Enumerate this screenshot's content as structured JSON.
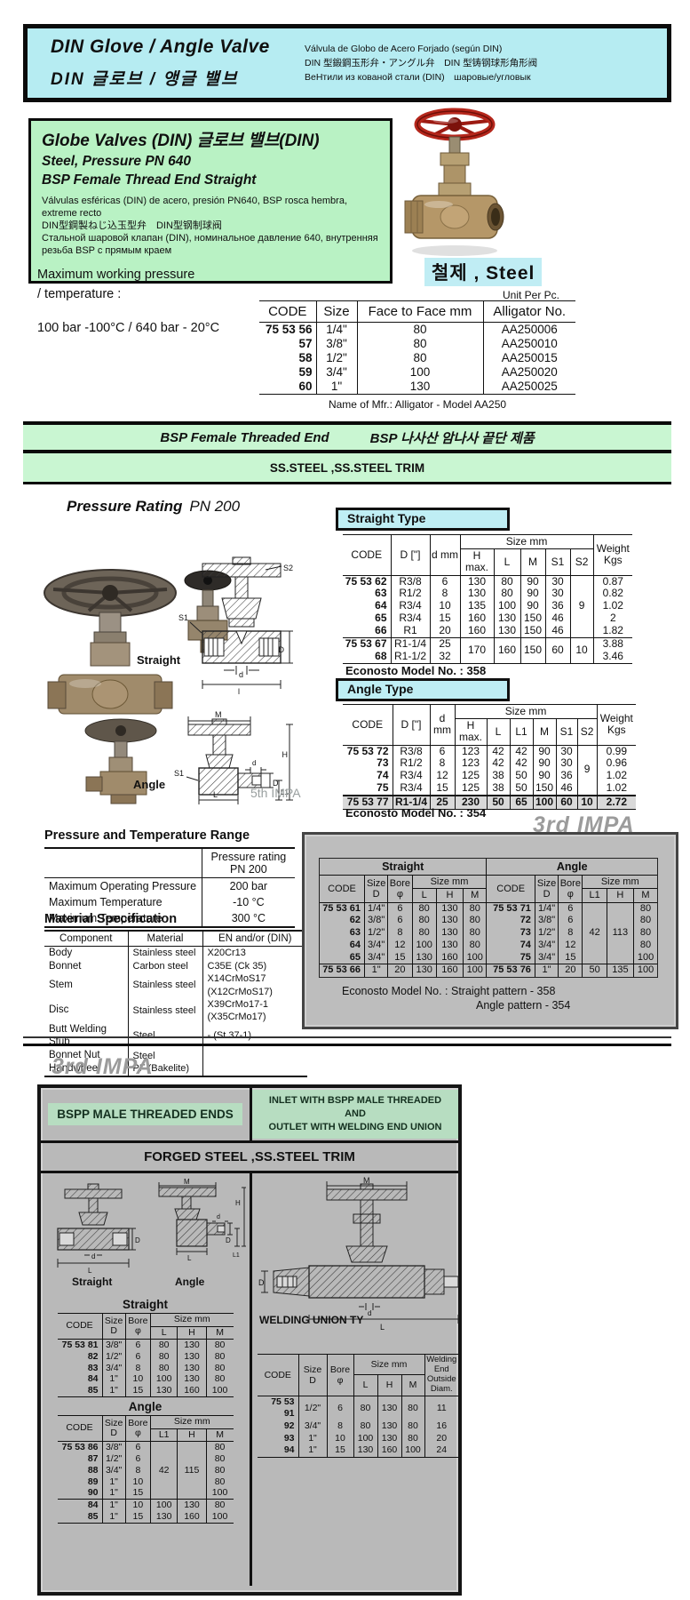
{
  "colors": {
    "cyan": "#b6ecf2",
    "green_box": "#b9f2c4",
    "band_green": "#c9f6d2",
    "gray_box": "#bdbdbd",
    "handwheel_red": "#b5271c"
  },
  "header": {
    "title_en": "DIN Glove / Angle Valve",
    "title_ko": "DIN 글로브 / 앵글 밸브",
    "sub_es": "Válvula de Globo de Acero Forjado (según DIN)",
    "sub_ja": "DIN 型鍛鋼玉形弁・アングル弁　DIN 型铸钢球形角形阀",
    "sub_ru": "ВеНтили из кованой стали (DIN)　шаровые/угловык"
  },
  "product": {
    "title": "Globe Valves (DIN)  글로브 밸브(DIN)",
    "line2": "Steel, Pressure PN 640",
    "line3": "BSP Female Thread End  Straight",
    "desc_es": "Válvulas esféricas (DIN) de acero, presión PN640, BSP rosca hembra, extreme recto",
    "desc_ja": "DIN型鋼製ねじ込玉型弁　DIN型钢制球阀",
    "desc_ru": "Стальной шаровой клапан (DIN), номинальное давление 640, внутренняя резьба BSP с прямым краем"
  },
  "photo_caption": "철제 , Steel",
  "working": {
    "l1": "Maximum working pressure",
    "l2": "/ temperature :",
    "l3": "100 bar -100°C / 640 bar - 20°C"
  },
  "unit": "Unit Per Pc.",
  "mfr": "Name of Mfr.: Alligator - Model AA250",
  "th": {
    "code": "CODE",
    "size": "Size",
    "f2f": "Face to Face mm",
    "allig": "Alligator No.",
    "d_inch": "D [\"]",
    "d_mm": "d mm",
    "d_mm2": "d\nmm",
    "size_mm": "Size mm",
    "h_max": "H\nmax.",
    "L": "L",
    "M": "M",
    "S1": "S1",
    "S2": "S2",
    "H": "H",
    "L1": "L1",
    "weight": "Weight\nKgs",
    "size_d": "Size\nD",
    "bore": "Bore\nφ",
    "straight": "Straight",
    "angle": "Angle",
    "welding": "Welding\nEnd\nOutside\nDiam."
  },
  "alligator": {
    "rows": [
      [
        "75 53 56",
        "1/4\"",
        "80",
        "AA250006"
      ],
      [
        "57",
        "3/8\"",
        "80",
        "AA250010"
      ],
      [
        "58",
        "1/2\"",
        "80",
        "AA250015"
      ],
      [
        "59",
        "3/4\"",
        "100",
        "AA250020"
      ],
      [
        "60",
        "1\"",
        "130",
        "AA250025"
      ]
    ]
  },
  "bands": {
    "b1a": "BSP Female Threaded End",
    "b1b": "BSP 나사산 암나사 끝단 제품",
    "b2": "SS.STEEL ,SS.STEEL  TRIM"
  },
  "pn200": {
    "t": "Pressure Rating",
    "v": "PN 200"
  },
  "straight_type": {
    "label": "Straight Type",
    "rows1": [
      [
        "75 53 62",
        "R3/8",
        "6",
        "130",
        "80",
        "90",
        "30",
        {
          "t": "9",
          "rs": 5
        },
        "0.87"
      ],
      [
        "63",
        "R1/2",
        "8",
        "130",
        "80",
        "90",
        "30",
        "0.82"
      ],
      [
        "64",
        "R3/4",
        "10",
        "135",
        "100",
        "90",
        "36",
        "1.02"
      ],
      [
        "65",
        "R3/4",
        "15",
        "160",
        "130",
        "150",
        "46",
        "2"
      ],
      [
        "66",
        "R1",
        "20",
        "160",
        "130",
        "150",
        "46",
        "1.82"
      ]
    ],
    "rows2": [
      [
        "75 53 67",
        "R1-1/4",
        "25",
        {
          "t": "170",
          "rs": 2
        },
        {
          "t": "160",
          "rs": 2
        },
        {
          "t": "150",
          "rs": 2
        },
        {
          "t": "60",
          "rs": 2
        },
        {
          "t": "10",
          "rs": 2
        },
        "3.88"
      ],
      [
        "68",
        "R1-1/2",
        "32",
        "3.46"
      ]
    ]
  },
  "angle_type": {
    "label": "Angle Type",
    "rows1": [
      [
        "75 53 72",
        "R3/8",
        "6",
        "123",
        "42",
        "42",
        "90",
        "30",
        {
          "t": "9",
          "rs": 4
        },
        "0.99"
      ],
      [
        "73",
        "R1/2",
        "8",
        "123",
        "42",
        "42",
        "90",
        "30",
        "0.96"
      ],
      [
        "74",
        "R3/4",
        "12",
        "125",
        "38",
        "50",
        "90",
        "36",
        "1.02"
      ],
      [
        "75",
        "R3/4",
        "15",
        "125",
        "38",
        "50",
        "150",
        "46",
        "1.02"
      ]
    ],
    "hl": [
      [
        "75 53 77",
        "R1-1/4",
        "25",
        "230",
        "50",
        "65",
        "100",
        "60",
        "10",
        "2.72"
      ]
    ]
  },
  "eco": {
    "m358": "Econosto Model No. : 358",
    "m354": "Econosto Model No. : 354",
    "box1": "Econosto Model No. : Straight pattern - 358",
    "box2": "Angle pattern  - 354"
  },
  "impa": {
    "fifth": "5th IMPA",
    "third": "3rd IMPA"
  },
  "pt": {
    "title": "Pressure and  Temperature Range",
    "header": "Pressure rating PN 200",
    "rows": [
      [
        "Maximum Operating Pressure",
        "200 bar"
      ],
      [
        "Maximum Temperature",
        "-10 °C"
      ],
      [
        "Maximum Temperature",
        "300 °C"
      ]
    ]
  },
  "mat": {
    "title": "Material Specification",
    "h1": "Component",
    "h2": "Material",
    "h3": "EN and/or (DIN)",
    "rows": [
      [
        "Body",
        "Stainless steel",
        "X20Cr13"
      ],
      [
        "Bonnet",
        "Carbon steel",
        "C35E (Ck 35)"
      ],
      [
        "Stem",
        "Stainless steel",
        "X14CrMoS17 (X12CrMoS17)"
      ],
      [
        "Disc",
        "Stainless steel",
        "X39CrMo17-1 (X35CrMo17)"
      ],
      [
        "Butt Welding Stub",
        "Steel",
        "- (St.37-1)"
      ],
      [
        "Bonnet Nut",
        "Steel",
        ""
      ],
      [
        "Handwheel",
        "PF (Bakelite)",
        ""
      ]
    ]
  },
  "imp": {
    "rows1": [
      [
        "75 53 61",
        "1/4\"",
        "6",
        "80",
        "130",
        "80",
        {
          "t": "75 53 71",
          "cls": "code"
        },
        "1/4\"",
        "6",
        {
          "t": "42",
          "rs": 5
        },
        {
          "t": "113",
          "rs": 5
        },
        "80"
      ],
      [
        "62",
        "3/8\"",
        "6",
        "80",
        "130",
        "80",
        {
          "t": "72",
          "cls": "code"
        },
        "3/8\"",
        "6",
        "80"
      ],
      [
        "63",
        "1/2\"",
        "8",
        "80",
        "130",
        "80",
        {
          "t": "73",
          "cls": "code"
        },
        "1/2\"",
        "8",
        "80"
      ],
      [
        "64",
        "3/4\"",
        "12",
        "100",
        "130",
        "80",
        {
          "t": "74",
          "cls": "code"
        },
        "3/4\"",
        "12",
        "80"
      ],
      [
        "65",
        "3/4\"",
        "15",
        "130",
        "160",
        "100",
        {
          "t": "75",
          "cls": "code"
        },
        "3/4\"",
        "15",
        "100"
      ]
    ],
    "rows2": [
      [
        "75 53 66",
        "1\"",
        "20",
        "130",
        "160",
        "100",
        {
          "t": "75 53 76",
          "cls": "code"
        },
        "1\"",
        "20",
        "50",
        "135",
        "100"
      ]
    ]
  },
  "bottom": {
    "bspp": "BSPP MALE THREADED ENDS",
    "inlet": "INLET WITH BSPP MALE THREADED AND\nOUTLET WITH WELDING END UNION",
    "forged": "FORGED STEEL ,SS.STEEL  TRIM",
    "welding_union": "WELDING UNION TY",
    "straight_title": "Straight",
    "angle_title": "Angle"
  },
  "bstraight": {
    "rows": [
      [
        "75 53 81",
        "3/8\"",
        "6",
        "80",
        "130",
        "80"
      ],
      [
        "82",
        "1/2\"",
        "6",
        "80",
        "130",
        "80"
      ],
      [
        "83",
        "3/4\"",
        "8",
        "80",
        "130",
        "80"
      ],
      [
        "84",
        "1\"",
        "10",
        "100",
        "130",
        "80"
      ],
      [
        "85",
        "1\"",
        "15",
        "130",
        "160",
        "100"
      ]
    ]
  },
  "bangle": {
    "rows1": [
      [
        "75 53 86",
        "3/8\"",
        "6",
        {
          "t": "42",
          "rs": 5
        },
        {
          "t": "115",
          "rs": 5
        },
        "80"
      ],
      [
        "87",
        "1/2\"",
        "6",
        "80"
      ],
      [
        "88",
        "3/4\"",
        "8",
        "80"
      ],
      [
        "89",
        "1\"",
        "10",
        "80"
      ],
      [
        "90",
        "1\"",
        "15",
        "100"
      ]
    ],
    "rows2": [
      [
        "84",
        "1\"",
        "10",
        "100",
        "130",
        "80"
      ],
      [
        "85",
        "1\"",
        "15",
        "130",
        "160",
        "100"
      ]
    ]
  },
  "weld": {
    "rows": [
      [
        "75 53 91",
        "1/2\"",
        "6",
        "80",
        "130",
        "80",
        "11"
      ],
      [
        "92",
        "3/4\"",
        "8",
        "80",
        "130",
        "80",
        "16"
      ],
      [
        "93",
        "1\"",
        "10",
        "100",
        "130",
        "80",
        "20"
      ],
      [
        "94",
        "1\"",
        "15",
        "130",
        "160",
        "100",
        "24"
      ]
    ]
  },
  "dims": {
    "S1": "S1",
    "S2": "S2",
    "D": "D",
    "d": "d",
    "l": "l",
    "L": "L",
    "L1": "L1",
    "M": "M",
    "H": "H"
  },
  "diagrams": {
    "straight": "Straight",
    "angle": "Angle"
  }
}
